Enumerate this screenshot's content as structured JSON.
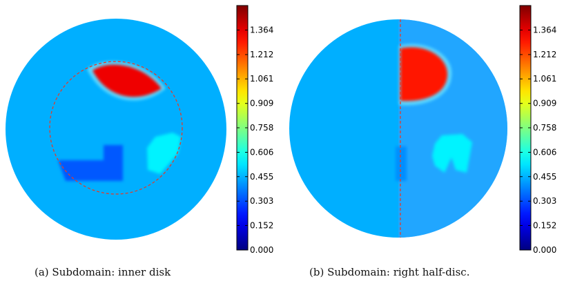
{
  "colors": {
    "disc_background": "#3399ff",
    "inclusion_hot": "#f26b1d",
    "inclusion_dark": "#2e5fe0",
    "inclusion_light": "#45c2ff",
    "subdomain_line": "#e23b2b"
  },
  "captions": {
    "a": "(a) Subdomain: inner disk",
    "b": "(b) Subdomain: right half-disc."
  },
  "chart_data": [
    {
      "type": "heatmap",
      "colormap": "jet",
      "vmin": 0.0,
      "vmax": 1.516,
      "colorbar_ticks": [
        "0.000",
        "0.152",
        "0.303",
        "0.455",
        "0.606",
        "0.758",
        "0.909",
        "1.061",
        "1.212",
        "1.364"
      ],
      "background_value": 0.45,
      "inclusions": [
        {
          "shape": "lens",
          "value": 1.35
        },
        {
          "shape": "L-shape",
          "value": 0.32
        },
        {
          "shape": "polygon",
          "value": 0.55
        }
      ],
      "subdomain": "inner disk",
      "caption": "(a) Subdomain: inner disk"
    },
    {
      "type": "heatmap",
      "colormap": "jet",
      "vmin": 0.0,
      "vmax": 1.516,
      "colorbar_ticks": [
        "0.000",
        "0.152",
        "0.303",
        "0.455",
        "0.606",
        "0.758",
        "0.909",
        "1.061",
        "1.212",
        "1.364"
      ],
      "background_value": 0.45,
      "inclusions": [
        {
          "shape": "half-lens",
          "value": 1.3
        },
        {
          "shape": "bar",
          "value": 0.4
        },
        {
          "shape": "polygon",
          "value": 0.55
        }
      ],
      "subdomain": "right half-disc",
      "caption": "(b) Subdomain: right half-disc."
    }
  ]
}
